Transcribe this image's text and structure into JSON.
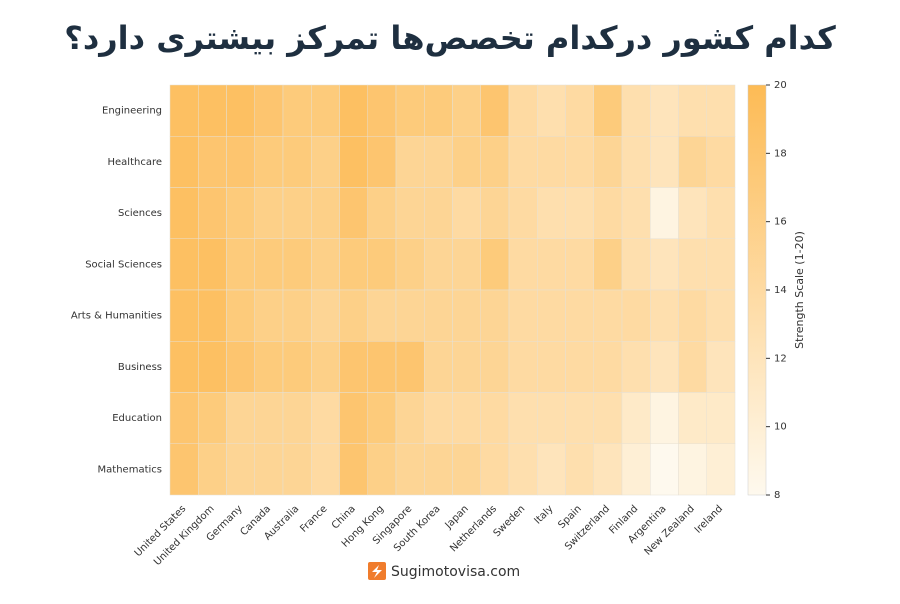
{
  "chart_data": {
    "type": "heatmap",
    "title": "کدام کشور درکدام تخصص‌ها تمرکز بیشتری دارد؟",
    "x": [
      "United States",
      "United Kingdom",
      "Germany",
      "Canada",
      "Australia",
      "France",
      "China",
      "Hong Kong",
      "Singapore",
      "South Korea",
      "Japan",
      "Netherlands",
      "Sweden",
      "Italy",
      "Spain",
      "Switzerland",
      "Finland",
      "Argentina",
      "New Zealand",
      "Ireland"
    ],
    "categories": [
      "Engineering",
      "Healthcare",
      "Sciences",
      "Social Sciences",
      "Arts & Humanities",
      "Business",
      "Education",
      "Mathematics"
    ],
    "values": [
      [
        19,
        19,
        19,
        18,
        17,
        17,
        19,
        18,
        17,
        17,
        16,
        18,
        14,
        13,
        14,
        17,
        13,
        12,
        13,
        13
      ],
      [
        19,
        18,
        18,
        17,
        17,
        16,
        19,
        18,
        15,
        15,
        16,
        16,
        14,
        14,
        14,
        15,
        13,
        12,
        15,
        14
      ],
      [
        19,
        18,
        17,
        16,
        16,
        16,
        18,
        16,
        15,
        15,
        14,
        15,
        14,
        13,
        13,
        14,
        13,
        9,
        12,
        13
      ],
      [
        19,
        19,
        17,
        17,
        17,
        16,
        17,
        17,
        16,
        15,
        15,
        17,
        14,
        14,
        14,
        16,
        13,
        12,
        13,
        13
      ],
      [
        19,
        19,
        17,
        16,
        16,
        15,
        16,
        15,
        15,
        15,
        15,
        15,
        14,
        14,
        14,
        14,
        14,
        13,
        14,
        13
      ],
      [
        19,
        19,
        18,
        17,
        17,
        16,
        18,
        18,
        18,
        15,
        15,
        15,
        14,
        14,
        14,
        14,
        13,
        12,
        14,
        12
      ],
      [
        18,
        17,
        15,
        15,
        15,
        14,
        18,
        17,
        15,
        14,
        14,
        14,
        13,
        13,
        13,
        13,
        11,
        9,
        11,
        11
      ],
      [
        18,
        16,
        15,
        15,
        15,
        14,
        18,
        16,
        15,
        15,
        15,
        14,
        13,
        12,
        13,
        12,
        10,
        8,
        9,
        10
      ]
    ],
    "colormap": [
      "#fef9ee",
      "#fdbb55"
    ],
    "clim": [
      8,
      20
    ],
    "cticks": [
      8,
      10,
      12,
      14,
      16,
      18,
      20
    ],
    "colorbar_label": "Strength Scale (1-20)"
  },
  "footer": {
    "text": "Sugimotovisa.com"
  }
}
